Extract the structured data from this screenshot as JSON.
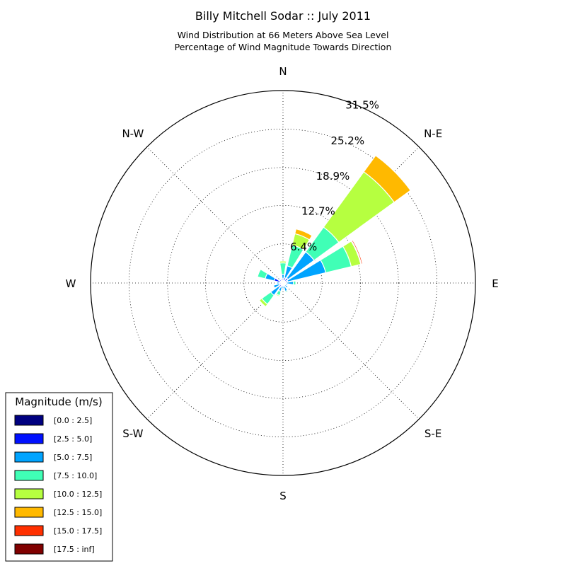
{
  "chart_data": {
    "type": "windrose",
    "title": "Billy Mitchell Sodar :: July 2011",
    "subtitle_lines": [
      "Wind Distribution at 66 Meters Above Sea Level",
      "Percentage of Wind Magnitude Towards Direction"
    ],
    "directions": [
      "N",
      "N-E",
      "E",
      "S-E",
      "S",
      "S-W",
      "W",
      "N-W"
    ],
    "radial_ticks": [
      "6.4%",
      "12.7%",
      "18.9%",
      "25.2%",
      "31.5%"
    ],
    "radial_tick_values": [
      6.4,
      12.7,
      18.9,
      25.2,
      31.5
    ],
    "rmax": 31.5,
    "grid": true,
    "legend_title": "Magnitude (m/s)",
    "legend_position": "bottom-left",
    "bins": [
      {
        "label": "[0.0 : 2.5]",
        "color": "#000080"
      },
      {
        "label": "[2.5 : 5.0]",
        "color": "#0010ff"
      },
      {
        "label": "[5.0 : 7.5]",
        "color": "#00a4ff"
      },
      {
        "label": "[7.5 : 10.0]",
        "color": "#40ffb6"
      },
      {
        "label": "[10.0 : 12.5]",
        "color": "#b6ff40"
      },
      {
        "label": "[12.5 : 15.0]",
        "color": "#ffb900"
      },
      {
        "label": "[15.0 : 17.5]",
        "color": "#ff3000"
      },
      {
        "label": "[17.5 : inf]",
        "color": "#800000"
      }
    ],
    "sector_angles_deg": [
      0,
      22.5,
      45,
      67.5,
      90,
      112.5,
      135,
      157.5,
      180,
      202.5,
      225,
      247.5,
      270,
      292.5,
      315,
      337.5
    ],
    "sector_width_deg": 18,
    "sector_cumulative_percent": [
      [
        0.3,
        0.7,
        1.4,
        3.3,
        3.6,
        3.6,
        3.6,
        3.6
      ],
      [
        0.3,
        0.9,
        2.9,
        6.4,
        8.3,
        9.1,
        9.1,
        9.1
      ],
      [
        0.3,
        1.0,
        6.3,
        11.3,
        22.5,
        25.8,
        25.8,
        25.8
      ],
      [
        0.3,
        0.8,
        7.2,
        11.5,
        13.1,
        13.2,
        13.4,
        13.4
      ],
      [
        0.3,
        0.6,
        1.7,
        2.1,
        2.1,
        2.1,
        2.1,
        2.1
      ],
      [
        0.2,
        0.4,
        0.8,
        0.8,
        0.8,
        0.8,
        0.8,
        0.8
      ],
      [
        0.2,
        0.5,
        1.0,
        1.0,
        1.0,
        1.0,
        1.0,
        1.0
      ],
      [
        0.2,
        0.6,
        1.4,
        1.6,
        1.6,
        1.6,
        1.6,
        1.6
      ],
      [
        0.2,
        0.4,
        0.9,
        0.9,
        0.9,
        0.9,
        0.9,
        0.9
      ],
      [
        0.3,
        0.7,
        1.4,
        2.1,
        2.3,
        2.3,
        2.3,
        2.3
      ],
      [
        0.3,
        0.9,
        2.5,
        4.3,
        4.8,
        4.8,
        4.8,
        4.8
      ],
      [
        0.3,
        0.6,
        1.6,
        1.6,
        1.6,
        1.6,
        1.6,
        1.6
      ],
      [
        0.3,
        0.6,
        1.0,
        1.0,
        1.0,
        1.0,
        1.0,
        1.0
      ],
      [
        0.3,
        1.5,
        3.0,
        4.3,
        4.3,
        4.3,
        4.3,
        4.3
      ],
      [
        0.3,
        0.7,
        0.9,
        0.9,
        0.9,
        0.9,
        0.9,
        0.9
      ],
      [
        0.3,
        0.7,
        0.8,
        0.8,
        0.8,
        0.8,
        0.8,
        0.8
      ]
    ]
  }
}
